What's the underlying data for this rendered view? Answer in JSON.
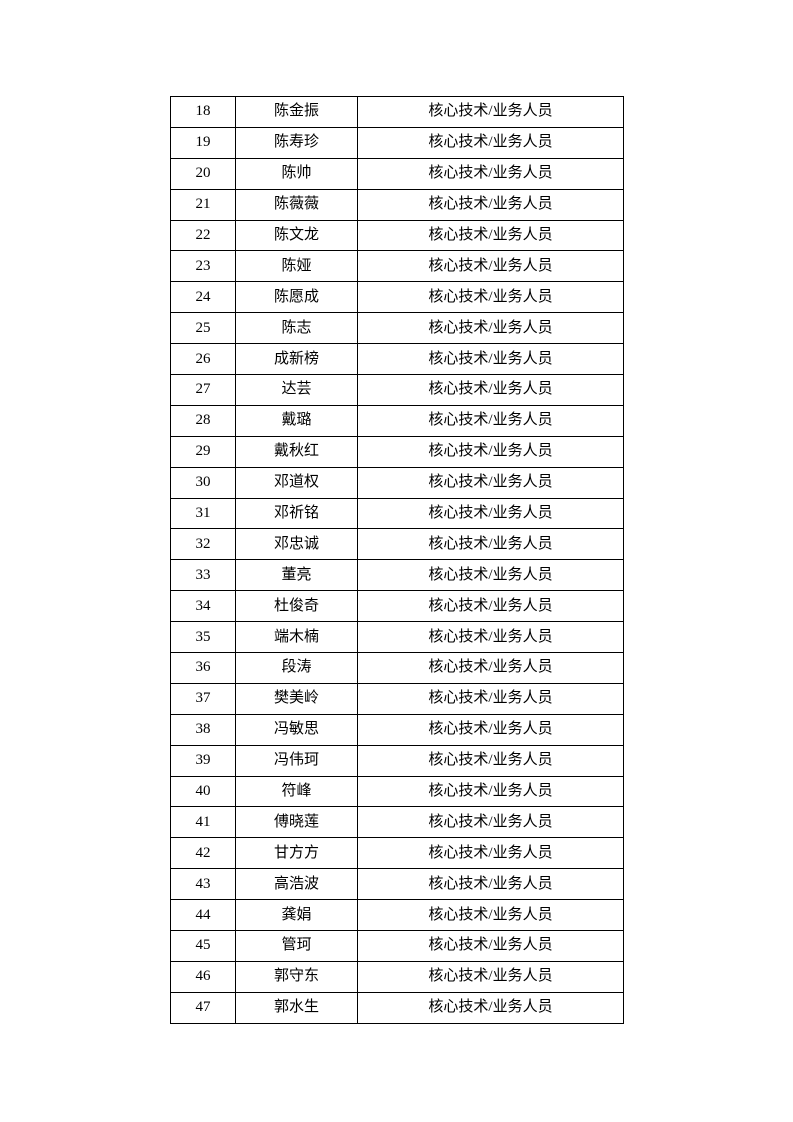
{
  "page": {
    "background_color": "#ffffff",
    "text_color": "#000000"
  },
  "table": {
    "role_label": "核心技术/业务人员",
    "rows": [
      {
        "num": "18",
        "name": "陈金振",
        "role": "核心技术/业务人员"
      },
      {
        "num": "19",
        "name": "陈寿珍",
        "role": "核心技术/业务人员"
      },
      {
        "num": "20",
        "name": "陈帅",
        "role": "核心技术/业务人员"
      },
      {
        "num": "21",
        "name": "陈薇薇",
        "role": "核心技术/业务人员"
      },
      {
        "num": "22",
        "name": "陈文龙",
        "role": "核心技术/业务人员"
      },
      {
        "num": "23",
        "name": "陈娅",
        "role": "核心技术/业务人员"
      },
      {
        "num": "24",
        "name": "陈愿成",
        "role": "核心技术/业务人员"
      },
      {
        "num": "25",
        "name": "陈志",
        "role": "核心技术/业务人员"
      },
      {
        "num": "26",
        "name": "成新榜",
        "role": "核心技术/业务人员"
      },
      {
        "num": "27",
        "name": "达芸",
        "role": "核心技术/业务人员"
      },
      {
        "num": "28",
        "name": "戴璐",
        "role": "核心技术/业务人员"
      },
      {
        "num": "29",
        "name": "戴秋红",
        "role": "核心技术/业务人员"
      },
      {
        "num": "30",
        "name": "邓道权",
        "role": "核心技术/业务人员"
      },
      {
        "num": "31",
        "name": "邓祈铭",
        "role": "核心技术/业务人员"
      },
      {
        "num": "32",
        "name": "邓忠诚",
        "role": "核心技术/业务人员"
      },
      {
        "num": "33",
        "name": "董亮",
        "role": "核心技术/业务人员"
      },
      {
        "num": "34",
        "name": "杜俊奇",
        "role": "核心技术/业务人员"
      },
      {
        "num": "35",
        "name": "端木楠",
        "role": "核心技术/业务人员"
      },
      {
        "num": "36",
        "name": "段涛",
        "role": "核心技术/业务人员"
      },
      {
        "num": "37",
        "name": "樊美岭",
        "role": "核心技术/业务人员"
      },
      {
        "num": "38",
        "name": "冯敏思",
        "role": "核心技术/业务人员"
      },
      {
        "num": "39",
        "name": "冯伟珂",
        "role": "核心技术/业务人员"
      },
      {
        "num": "40",
        "name": "符峰",
        "role": "核心技术/业务人员"
      },
      {
        "num": "41",
        "name": "傅晓莲",
        "role": "核心技术/业务人员"
      },
      {
        "num": "42",
        "name": "甘方方",
        "role": "核心技术/业务人员"
      },
      {
        "num": "43",
        "name": "高浩波",
        "role": "核心技术/业务人员"
      },
      {
        "num": "44",
        "name": "龚娟",
        "role": "核心技术/业务人员"
      },
      {
        "num": "45",
        "name": "管珂",
        "role": "核心技术/业务人员"
      },
      {
        "num": "46",
        "name": "郭守东",
        "role": "核心技术/业务人员"
      },
      {
        "num": "47",
        "name": "郭水生",
        "role": "核心技术/业务人员"
      }
    ]
  }
}
